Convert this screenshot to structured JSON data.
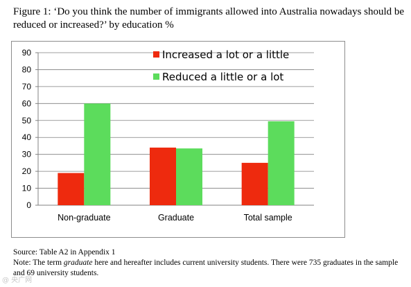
{
  "figure": {
    "title": "Figure 1: ‘Do you think the number of immigrants allowed into Australia nowadays should be reduced or increased?’ by education %",
    "source": "Source: Table A2 in Appendix 1",
    "note_before": "Note: The term ",
    "note_term": "graduate",
    "note_after": " here and hereafter includes current university students. There were 735 graduates in the sample and 69 university students."
  },
  "colors": {
    "increased": "#ee2a0e",
    "reduced": "#5cdc5c",
    "axis": "#808080",
    "grid": "#7f7f7f"
  },
  "chart_data": {
    "type": "bar",
    "categories": [
      "Non-graduate",
      "Graduate",
      "Total sample"
    ],
    "series": [
      {
        "name": "Increased a lot or a little",
        "values": [
          19,
          34,
          25
        ]
      },
      {
        "name": "Reduced a little or a lot",
        "values": [
          60,
          33.5,
          49.5
        ]
      }
    ],
    "ylim": [
      0,
      90
    ],
    "yticks": [
      0,
      10,
      20,
      30,
      40,
      50,
      60,
      70,
      80,
      90
    ],
    "grid": true,
    "legend_position": "top-right"
  },
  "watermark": "@ 央广网"
}
